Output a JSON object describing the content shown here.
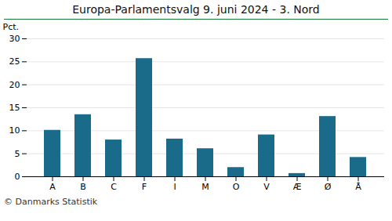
{
  "chart_data": {
    "type": "bar",
    "title": "Europa-Parlamentsvalg 9. juni 2024 - 3. Nord",
    "categories": [
      "A",
      "B",
      "C",
      "F",
      "I",
      "M",
      "O",
      "V",
      "Æ",
      "Ø",
      "Å"
    ],
    "values": [
      10.1,
      13.5,
      8.0,
      25.7,
      8.2,
      6.1,
      2.0,
      9.1,
      0.7,
      13.1,
      4.2
    ],
    "color": "#1a6b8a",
    "ylabel": "Pct.",
    "ylim": [
      0,
      30
    ],
    "yticks": [
      0,
      5,
      10,
      15,
      20,
      25,
      30
    ],
    "grid": true,
    "caption": "© Danmarks Statistik"
  }
}
